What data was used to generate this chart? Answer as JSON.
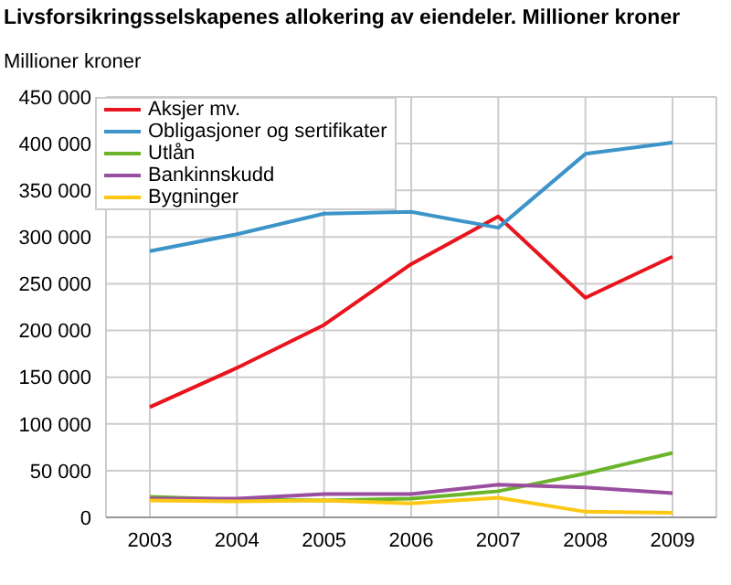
{
  "chart_data": {
    "type": "line",
    "title": "Livsforsikringsselskapenes allokering av eiendeler. Millioner kroner",
    "ylabel": "Millioner kroner",
    "categories": [
      "2003",
      "2004",
      "2005",
      "2006",
      "2007",
      "2008",
      "2009"
    ],
    "series": [
      {
        "name": "Aksjer mv.",
        "color": "#e8141e",
        "values": [
          118000,
          160000,
          206000,
          271000,
          322000,
          235000,
          279000
        ]
      },
      {
        "name": "Obligasjoner og sertifikater",
        "color": "#3c94c8",
        "values": [
          285000,
          303000,
          325000,
          327000,
          310000,
          389000,
          401000
        ]
      },
      {
        "name": "Utlån",
        "color": "#6ab42a",
        "values": [
          22000,
          19000,
          18000,
          20000,
          28000,
          47000,
          69000
        ]
      },
      {
        "name": "Bankinnskudd",
        "color": "#9a4ea0",
        "values": [
          20000,
          20000,
          25000,
          25000,
          35000,
          32000,
          26000
        ]
      },
      {
        "name": "Bygninger",
        "color": "#fcc814",
        "values": [
          18000,
          17000,
          18000,
          15000,
          21000,
          6000,
          5000
        ]
      }
    ],
    "ylim": [
      0,
      450000
    ],
    "yticks": [
      0,
      {
        "value": 50000,
        "label": "50 000"
      },
      {
        "value": 100000,
        "label": "100 000"
      },
      {
        "value": 150000,
        "label": "150 000"
      },
      {
        "value": 200000,
        "label": "200 000"
      },
      {
        "value": 250000,
        "label": "250 000"
      },
      {
        "value": 300000,
        "label": "300 000"
      },
      {
        "value": 350000,
        "label": "350 000"
      },
      {
        "value": 400000,
        "label": "400 000"
      },
      {
        "value": 450000,
        "label": "450 000"
      }
    ],
    "grid": true,
    "legend": "top left",
    "marker": "none",
    "line_style": "solid"
  }
}
